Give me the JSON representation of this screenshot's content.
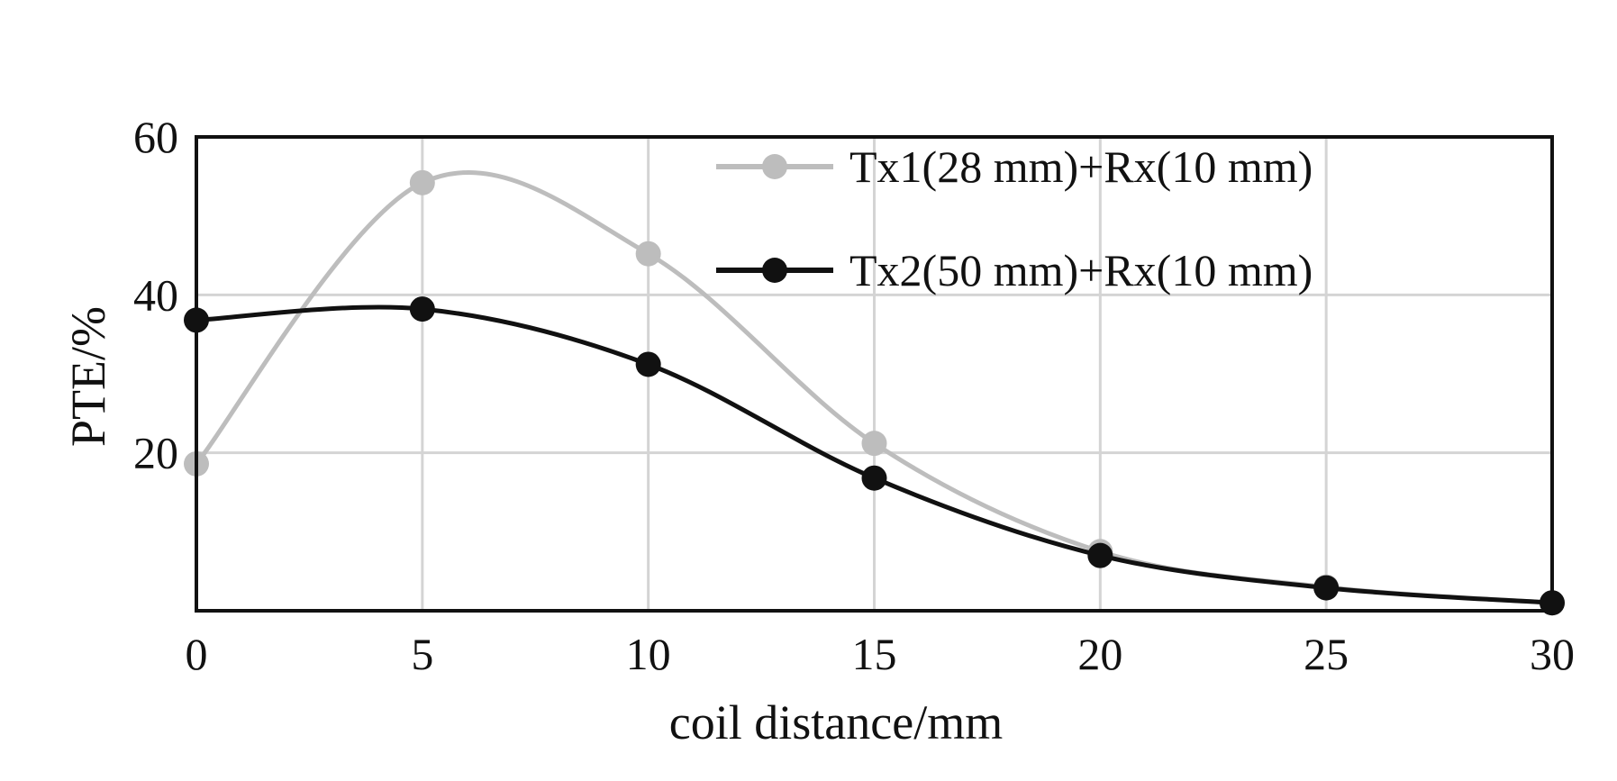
{
  "chart_data": {
    "type": "line",
    "title": "",
    "xlabel": "coil distance/mm",
    "ylabel": "PTE/%",
    "xlim": [
      0,
      30
    ],
    "ylim": [
      0,
      60
    ],
    "x_ticks": [
      0,
      5,
      10,
      15,
      20,
      25,
      30
    ],
    "y_ticks": [
      20,
      40,
      60
    ],
    "x_tick_labels": [
      "0",
      "5",
      "10",
      "15",
      "20",
      "25",
      "30"
    ],
    "y_tick_labels": [
      "20",
      "40",
      "60"
    ],
    "grid": true,
    "legend_position": "top-right",
    "x": [
      0,
      5,
      10,
      15,
      20,
      25,
      30
    ],
    "series": [
      {
        "name": "Tx1(28 mm)+Rx(10 mm)",
        "color": "#bdbdbd",
        "values": [
          18.6,
          54.2,
          45.2,
          21.2,
          7.5,
          3.0,
          1.0
        ]
      },
      {
        "name": "Tx2(50 mm)+Rx(10 mm)",
        "color": "#111111",
        "values": [
          36.8,
          38.2,
          31.2,
          16.8,
          7.0,
          2.9,
          1.0
        ]
      }
    ]
  }
}
